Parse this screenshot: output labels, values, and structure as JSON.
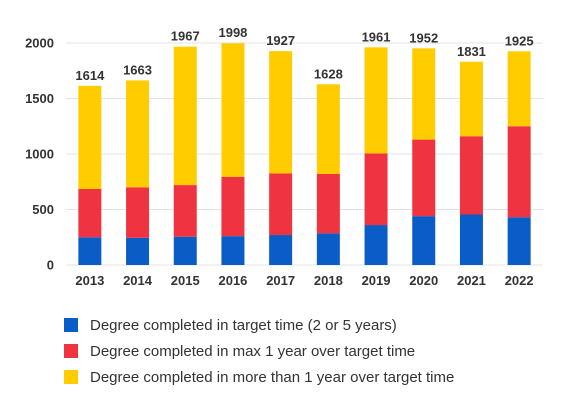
{
  "chart_data": {
    "type": "bar",
    "stacked": true,
    "categories": [
      "2013",
      "2014",
      "2015",
      "2016",
      "2017",
      "2018",
      "2019",
      "2020",
      "2021",
      "2022"
    ],
    "series": [
      {
        "name": "Degree completed in target time (2 or 5 years)",
        "color": "#0a5cc7",
        "values": [
          250,
          245,
          255,
          260,
          270,
          285,
          360,
          440,
          455,
          430
        ]
      },
      {
        "name": "Degree completed in max 1 year over target time",
        "color": "#ef3340",
        "values": [
          435,
          455,
          465,
          535,
          555,
          535,
          645,
          690,
          705,
          820
        ]
      },
      {
        "name": "Degree completed in more than 1 year over target time",
        "color": "#ffcc00",
        "values": [
          929,
          963,
          1247,
          1203,
          1102,
          808,
          956,
          822,
          671,
          675
        ]
      }
    ],
    "totals": [
      "1614",
      "1663",
      "1967",
      "1998",
      "1927",
      "1628",
      "1961",
      "1952",
      "1831",
      "1925"
    ],
    "yticks": [
      "0",
      "500",
      "1000",
      "1500",
      "2000"
    ],
    "ylim": [
      0,
      2000
    ],
    "grid": true,
    "legend_position": "bottom",
    "title": "",
    "xlabel": "",
    "ylabel": ""
  }
}
